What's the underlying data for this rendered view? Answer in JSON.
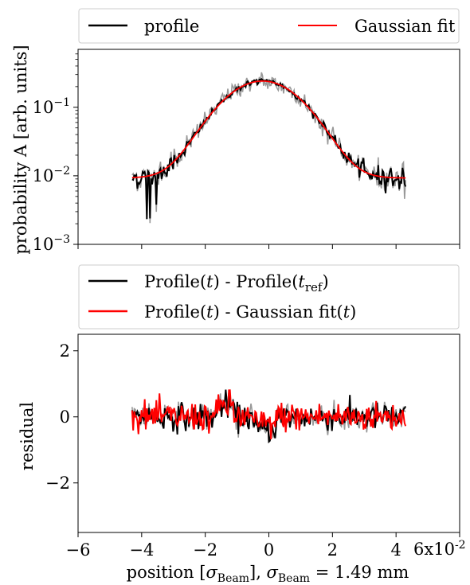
{
  "chart_data": [
    {
      "type": "line",
      "ylabel": "probability A [arb. units]",
      "yscale": "log",
      "ylim": [
        0.001,
        0.7
      ],
      "xlim": [
        -6,
        6
      ],
      "yticks": [
        {
          "value": 0.1,
          "base": "10",
          "exp": "−1"
        },
        {
          "value": 0.01,
          "base": "10",
          "exp": "−2"
        },
        {
          "value": 0.001,
          "base": "10",
          "exp": "−3"
        }
      ],
      "legend": [
        "profile",
        "Gaussian fit"
      ],
      "legend_placement": "top",
      "gaussian_fit": {
        "amplitude": 0.232,
        "mean": -0.2,
        "sigma": 1.05,
        "offset": 0.0093
      },
      "series": [
        {
          "name": "profile",
          "color": "#000000",
          "x_range": [
            -4.3,
            4.3
          ]
        },
        {
          "name": "Gaussian fit",
          "color": "#ff0000",
          "x_range": [
            -4.3,
            4.3
          ]
        }
      ]
    },
    {
      "type": "line",
      "ylabel": "residual",
      "xlabel_parts": {
        "pre": "position [",
        "sym": "σ",
        "sub": "Beam",
        "mid": "], ",
        "sym2": "σ",
        "sub2": "Beam",
        "post": " = 1.49 mm"
      },
      "ylim": [
        -3.5,
        2.5
      ],
      "xlim": [
        -6,
        6
      ],
      "xticks": [
        {
          "value": -6,
          "label": "−6"
        },
        {
          "value": -4,
          "label": "−4"
        },
        {
          "value": -2,
          "label": "−2"
        },
        {
          "value": 0,
          "label": "0"
        },
        {
          "value": 2,
          "label": "2"
        },
        {
          "value": 4,
          "label": "4"
        }
      ],
      "x_offset_text": {
        "base": "6x10",
        "exp": "-2"
      },
      "yticks": [
        {
          "value": 2,
          "label": "2"
        },
        {
          "value": 0,
          "label": "0"
        },
        {
          "value": -2,
          "label": "−2"
        }
      ],
      "legend_placement": "top",
      "legend": [
        {
          "prefix": "Profile(",
          "var": "t",
          "mid": ") - Profile(",
          "var2": "t",
          "sub": "ref",
          "suffix": ")"
        },
        {
          "prefix": "Profile(",
          "var": "t",
          "mid": ") - Gaussian fit(",
          "var2": "t",
          "suffix": ")"
        }
      ],
      "series": [
        {
          "name": "Profile(t) - Profile(t_ref)",
          "color": "#000000",
          "x_range": [
            -4.3,
            4.3
          ],
          "amplitude": 0.45
        },
        {
          "name": "Profile(t) - Gaussian fit(t)",
          "color": "#ff0000",
          "x_range": [
            -4.3,
            4.3
          ],
          "amplitude": 0.5
        }
      ]
    }
  ]
}
